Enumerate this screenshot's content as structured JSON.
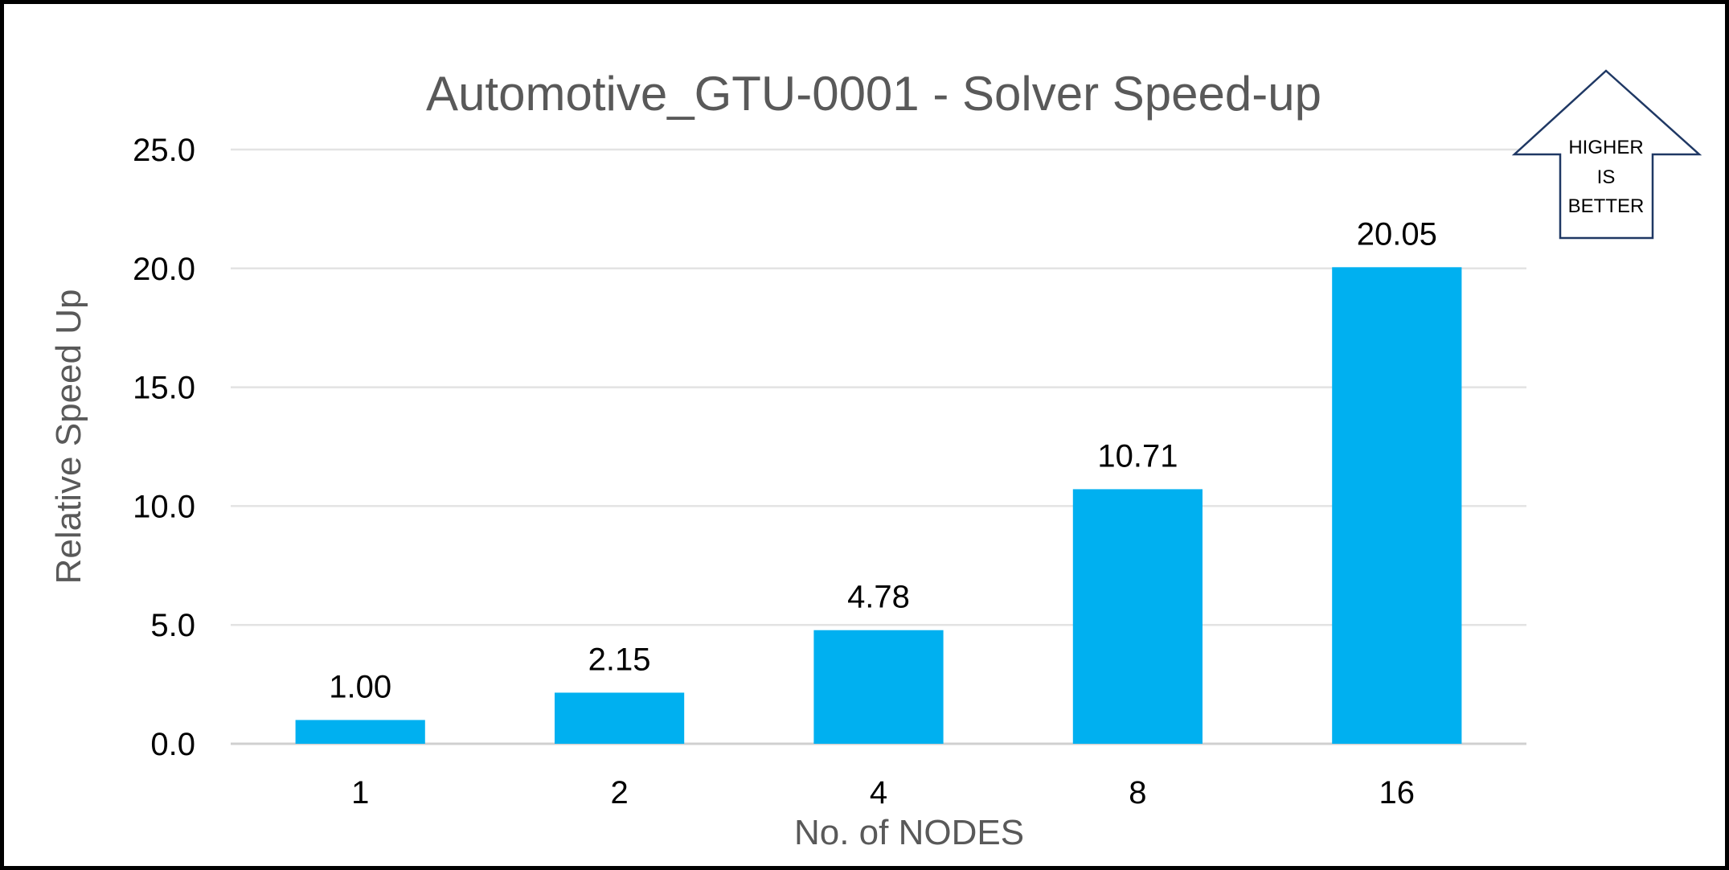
{
  "chart_data": {
    "type": "bar",
    "title": "Automotive_GTU-0001 - Solver Speed-up",
    "xlabel": "No. of NODES",
    "ylabel": "Relative Speed Up",
    "categories": [
      "1",
      "2",
      "4",
      "8",
      "16"
    ],
    "values": [
      1.0,
      2.15,
      4.78,
      10.71,
      20.05
    ],
    "data_labels": [
      "1.00",
      "2.15",
      "4.78",
      "10.71",
      "20.05"
    ],
    "ylim": [
      0,
      25
    ],
    "yticks": [
      "0.0",
      "5.0",
      "10.0",
      "15.0",
      "20.0",
      "25.0"
    ],
    "ytick_values": [
      0,
      5,
      10,
      15,
      20,
      25
    ],
    "grid": true,
    "legend": "none",
    "bar_color": "#00B0F0",
    "annotation": {
      "shape": "up-arrow",
      "lines": [
        "HIGHER",
        "IS",
        "BETTER"
      ],
      "outline_color": "#1F3864"
    }
  }
}
